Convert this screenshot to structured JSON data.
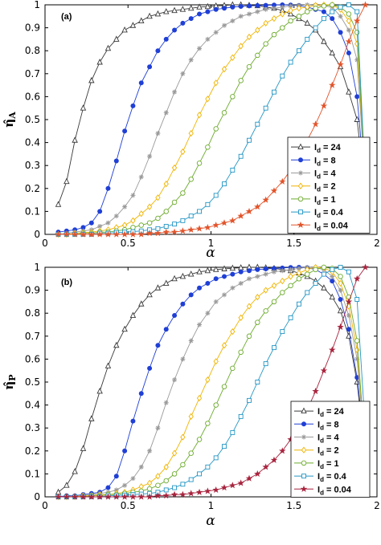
{
  "chart_data": [
    {
      "type": "line",
      "panel_label": "(a)",
      "xlabel": "α",
      "ylabel": "η̂_A",
      "xlim": [
        0,
        2
      ],
      "ylim": [
        0,
        1
      ],
      "xticks": [
        "0",
        "0.5",
        "1",
        "1.5",
        "2"
      ],
      "yticks": [
        "0",
        "0.1",
        "0.2",
        "0.3",
        "0.4",
        "0.5",
        "0.6",
        "0.7",
        "0.8",
        "0.9",
        "1"
      ],
      "legend_position": "lower-right",
      "x": [
        0.08,
        0.13,
        0.18,
        0.23,
        0.28,
        0.33,
        0.38,
        0.43,
        0.48,
        0.53,
        0.58,
        0.63,
        0.68,
        0.73,
        0.78,
        0.83,
        0.88,
        0.93,
        0.98,
        1.03,
        1.08,
        1.13,
        1.18,
        1.23,
        1.28,
        1.33,
        1.38,
        1.43,
        1.48,
        1.53,
        1.58,
        1.63,
        1.68,
        1.73,
        1.78,
        1.83,
        1.88,
        1.93
      ],
      "series": [
        {
          "name": "I_d = 24",
          "color": "#3a3a3a",
          "marker": "triangle",
          "values": [
            0.13,
            0.23,
            0.41,
            0.55,
            0.67,
            0.75,
            0.81,
            0.85,
            0.89,
            0.91,
            0.93,
            0.95,
            0.96,
            0.97,
            0.975,
            0.98,
            0.985,
            0.99,
            0.992,
            0.995,
            0.997,
            1.0,
            1.0,
            0.998,
            0.996,
            0.99,
            0.985,
            0.975,
            0.96,
            0.94,
            0.92,
            0.89,
            0.84,
            0.79,
            0.73,
            0.62,
            0.5,
            0.18
          ]
        },
        {
          "name": "I_d = 8",
          "color": "#1f3fd6",
          "marker": "circle",
          "values": [
            0.01,
            0.015,
            0.02,
            0.03,
            0.05,
            0.1,
            0.2,
            0.32,
            0.45,
            0.56,
            0.66,
            0.73,
            0.8,
            0.85,
            0.89,
            0.92,
            0.94,
            0.96,
            0.97,
            0.98,
            0.985,
            0.99,
            0.993,
            0.995,
            0.997,
            0.998,
            0.999,
            1.0,
            0.999,
            0.997,
            0.99,
            0.98,
            0.97,
            0.94,
            0.88,
            0.79,
            0.6,
            0.19
          ]
        },
        {
          "name": "I_d = 4",
          "color": "#9a9a9a",
          "marker": "asterisk",
          "values": [
            0.0,
            0.005,
            0.01,
            0.015,
            0.02,
            0.035,
            0.05,
            0.08,
            0.12,
            0.17,
            0.25,
            0.34,
            0.44,
            0.53,
            0.62,
            0.7,
            0.76,
            0.81,
            0.85,
            0.88,
            0.91,
            0.93,
            0.95,
            0.96,
            0.97,
            0.98,
            0.985,
            0.99,
            0.995,
            0.998,
            1.0,
            0.998,
            0.995,
            0.99,
            0.95,
            0.89,
            0.76,
            0.21
          ]
        },
        {
          "name": "I_d = 2",
          "color": "#f0b400",
          "marker": "diamond",
          "values": [
            0.0,
            0.0,
            0.005,
            0.008,
            0.01,
            0.015,
            0.02,
            0.03,
            0.04,
            0.06,
            0.09,
            0.12,
            0.16,
            0.22,
            0.29,
            0.36,
            0.44,
            0.52,
            0.59,
            0.66,
            0.72,
            0.77,
            0.82,
            0.86,
            0.89,
            0.92,
            0.94,
            0.96,
            0.975,
            0.985,
            0.99,
            0.998,
            1.0,
            1.0,
            0.98,
            0.93,
            0.83,
            0.22
          ]
        },
        {
          "name": "I_d = 1",
          "color": "#6cab2c",
          "marker": "circle-open",
          "values": [
            0.0,
            0.0,
            0.0,
            0.005,
            0.005,
            0.01,
            0.01,
            0.015,
            0.02,
            0.03,
            0.04,
            0.05,
            0.07,
            0.1,
            0.14,
            0.18,
            0.24,
            0.31,
            0.38,
            0.46,
            0.53,
            0.6,
            0.67,
            0.73,
            0.78,
            0.83,
            0.87,
            0.9,
            0.93,
            0.95,
            0.97,
            0.985,
            0.995,
            1.0,
            0.99,
            0.96,
            0.88,
            0.23
          ]
        },
        {
          "name": "I_d = 0.4",
          "color": "#2496c4",
          "marker": "square",
          "values": [
            0.0,
            0.0,
            0.0,
            0.0,
            0.0,
            0.005,
            0.005,
            0.008,
            0.01,
            0.012,
            0.015,
            0.02,
            0.025,
            0.035,
            0.045,
            0.06,
            0.08,
            0.1,
            0.13,
            0.17,
            0.22,
            0.28,
            0.34,
            0.41,
            0.48,
            0.55,
            0.62,
            0.69,
            0.75,
            0.8,
            0.85,
            0.9,
            0.94,
            0.97,
            0.99,
            1.0,
            0.97,
            0.23
          ]
        },
        {
          "name": "I_d = 0.04",
          "color": "#e2542b",
          "marker": "star",
          "values": [
            0.0,
            0.0,
            0.0,
            0.0,
            0.0,
            0.0,
            0.0,
            0.0,
            0.0,
            0.0,
            0.0,
            0.005,
            0.005,
            0.01,
            0.01,
            0.015,
            0.02,
            0.025,
            0.03,
            0.04,
            0.05,
            0.06,
            0.08,
            0.1,
            0.12,
            0.15,
            0.19,
            0.23,
            0.28,
            0.34,
            0.41,
            0.48,
            0.56,
            0.65,
            0.74,
            0.84,
            0.93,
            1.0
          ]
        }
      ]
    },
    {
      "type": "line",
      "panel_label": "(b)",
      "xlabel": "α",
      "ylabel": "η̂_P",
      "xlim": [
        0,
        2
      ],
      "ylim": [
        0,
        1
      ],
      "xticks": [
        "0",
        "0.5",
        "1",
        "1.5",
        "2"
      ],
      "yticks": [
        "0",
        "0.1",
        "0.2",
        "0.3",
        "0.4",
        "0.5",
        "0.6",
        "0.7",
        "0.8",
        "0.9",
        "1"
      ],
      "legend_position": "lower-right",
      "x": [
        0.08,
        0.13,
        0.18,
        0.23,
        0.28,
        0.33,
        0.38,
        0.43,
        0.48,
        0.53,
        0.58,
        0.63,
        0.68,
        0.73,
        0.78,
        0.83,
        0.88,
        0.93,
        0.98,
        1.03,
        1.08,
        1.13,
        1.18,
        1.23,
        1.28,
        1.33,
        1.38,
        1.43,
        1.48,
        1.53,
        1.58,
        1.63,
        1.68,
        1.73,
        1.78,
        1.83,
        1.88,
        1.93
      ],
      "series": [
        {
          "name": "I_d = 24",
          "color": "#3a3a3a",
          "marker": "triangle",
          "values": [
            0.02,
            0.05,
            0.11,
            0.21,
            0.34,
            0.46,
            0.57,
            0.66,
            0.73,
            0.79,
            0.84,
            0.88,
            0.91,
            0.93,
            0.95,
            0.96,
            0.97,
            0.98,
            0.985,
            0.99,
            0.993,
            0.996,
            0.998,
            1.0,
            1.0,
            0.998,
            0.995,
            0.99,
            0.985,
            0.975,
            0.96,
            0.94,
            0.91,
            0.87,
            0.81,
            0.7,
            0.5,
            0.17
          ]
        },
        {
          "name": "I_d = 8",
          "color": "#1f3fd6",
          "marker": "circle",
          "values": [
            0.0,
            0.005,
            0.005,
            0.01,
            0.015,
            0.02,
            0.04,
            0.09,
            0.2,
            0.33,
            0.45,
            0.56,
            0.66,
            0.73,
            0.79,
            0.84,
            0.88,
            0.91,
            0.93,
            0.95,
            0.96,
            0.97,
            0.98,
            0.985,
            0.99,
            0.993,
            0.995,
            0.997,
            0.999,
            1.0,
            0.998,
            0.99,
            0.97,
            0.94,
            0.86,
            0.73,
            0.52,
            0.21
          ]
        },
        {
          "name": "I_d = 4",
          "color": "#9a9a9a",
          "marker": "asterisk",
          "values": [
            0.0,
            0.0,
            0.005,
            0.005,
            0.01,
            0.015,
            0.02,
            0.03,
            0.05,
            0.08,
            0.13,
            0.2,
            0.3,
            0.41,
            0.51,
            0.6,
            0.68,
            0.75,
            0.8,
            0.85,
            0.88,
            0.91,
            0.93,
            0.95,
            0.96,
            0.97,
            0.98,
            0.985,
            0.99,
            0.995,
            1.0,
            0.998,
            0.99,
            0.96,
            0.9,
            0.79,
            0.6,
            0.2
          ]
        },
        {
          "name": "I_d = 2",
          "color": "#f0b400",
          "marker": "diamond",
          "values": [
            0.0,
            0.0,
            0.0,
            0.005,
            0.005,
            0.01,
            0.01,
            0.015,
            0.02,
            0.03,
            0.045,
            0.06,
            0.09,
            0.13,
            0.19,
            0.26,
            0.35,
            0.43,
            0.51,
            0.59,
            0.66,
            0.72,
            0.78,
            0.83,
            0.87,
            0.9,
            0.92,
            0.94,
            0.96,
            0.975,
            0.99,
            1.0,
            0.998,
            0.98,
            0.93,
            0.83,
            0.64,
            0.21
          ]
        },
        {
          "name": "I_d = 1",
          "color": "#6cab2c",
          "marker": "circle-open",
          "values": [
            0.0,
            0.0,
            0.0,
            0.0,
            0.005,
            0.005,
            0.01,
            0.01,
            0.015,
            0.02,
            0.025,
            0.035,
            0.05,
            0.07,
            0.1,
            0.14,
            0.19,
            0.25,
            0.32,
            0.4,
            0.48,
            0.56,
            0.63,
            0.7,
            0.76,
            0.81,
            0.85,
            0.89,
            0.92,
            0.95,
            0.97,
            0.99,
            1.0,
            0.995,
            0.96,
            0.87,
            0.68,
            0.2
          ]
        },
        {
          "name": "I_d = 0.4",
          "color": "#2496c4",
          "marker": "square",
          "values": [
            0.0,
            0.0,
            0.0,
            0.0,
            0.0,
            0.0,
            0.005,
            0.005,
            0.008,
            0.01,
            0.012,
            0.015,
            0.02,
            0.03,
            0.04,
            0.055,
            0.075,
            0.1,
            0.13,
            0.17,
            0.22,
            0.28,
            0.35,
            0.42,
            0.5,
            0.58,
            0.65,
            0.72,
            0.78,
            0.84,
            0.89,
            0.93,
            0.97,
            0.99,
            1.0,
            0.98,
            0.86,
            0.29
          ]
        },
        {
          "name": "I_d = 0.04",
          "color": "#a8243e",
          "marker": "star",
          "values": [
            0.0,
            0.0,
            0.0,
            0.0,
            0.0,
            0.0,
            0.0,
            0.0,
            0.0,
            0.0,
            0.0,
            0.0,
            0.005,
            0.005,
            0.01,
            0.01,
            0.015,
            0.02,
            0.025,
            0.03,
            0.04,
            0.05,
            0.06,
            0.08,
            0.1,
            0.13,
            0.16,
            0.2,
            0.25,
            0.31,
            0.38,
            0.46,
            0.55,
            0.64,
            0.74,
            0.85,
            0.95,
            1.0
          ]
        }
      ]
    }
  ]
}
